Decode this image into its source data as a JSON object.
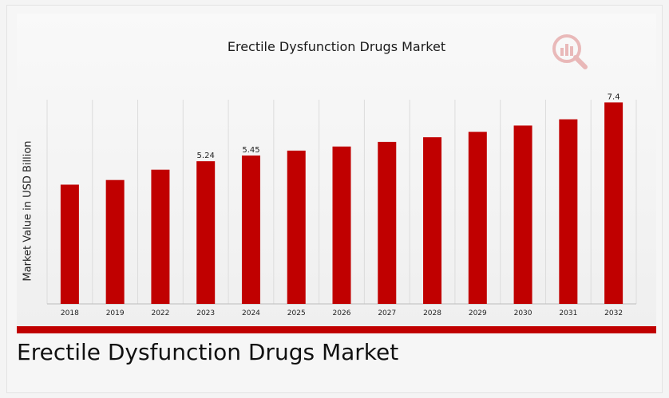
{
  "chart_data": {
    "type": "bar",
    "title": "Erectile Dysfunction Drugs Market",
    "ylabel": "Market Value in USD Billion",
    "xlabel": "",
    "categories": [
      "2018",
      "2019",
      "2022",
      "2023",
      "2024",
      "2025",
      "2026",
      "2027",
      "2028",
      "2029",
      "2030",
      "2031",
      "2032"
    ],
    "values": [
      4.38,
      4.55,
      4.93,
      5.24,
      5.45,
      5.63,
      5.78,
      5.95,
      6.12,
      6.32,
      6.55,
      6.78,
      7.4
    ],
    "data_labels": {
      "3": "5.24",
      "4": "5.45",
      "12": "7.4"
    },
    "ylim": [
      0,
      7.5
    ],
    "bar_color": "#c00000",
    "grid": "vertical"
  },
  "caption": "Erectile Dysfunction Drugs Market",
  "logo_icon": "magnifier-chart-logo-icon"
}
